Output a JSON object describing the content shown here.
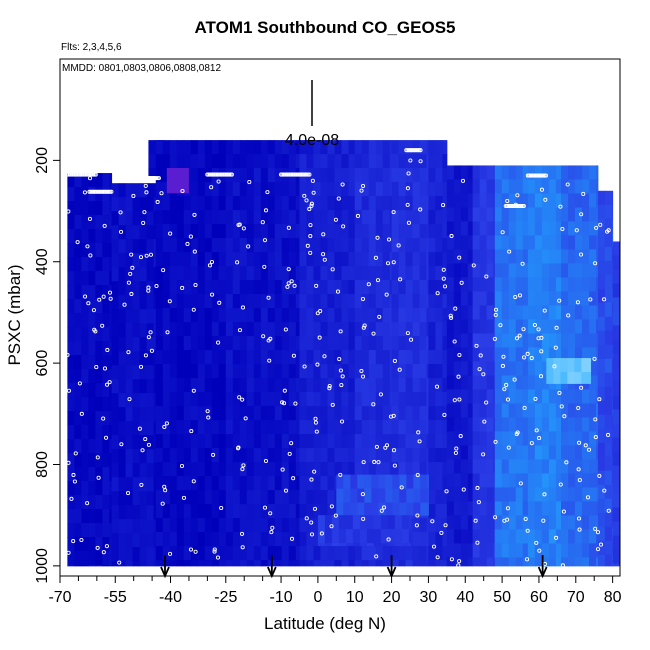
{
  "title": "ATOM1 Southbound CO_GEOS5",
  "flights_note": "Flts: 2,3,4,5,6",
  "dates_note": "MMDD: 0801,0803,0806,0808,0812",
  "scale_label": "4.0e-08",
  "chart_data": {
    "type": "heatmap",
    "xlabel": "Latitude (deg N)",
    "ylabel": "PSXC (mbar)",
    "xlim": [
      -70,
      82
    ],
    "ylim": [
      1020,
      0
    ],
    "x_ticks": [
      -70,
      -55,
      -40,
      -25,
      -10,
      0,
      10,
      20,
      30,
      40,
      50,
      60,
      70,
      80
    ],
    "x_tick_labels": [
      "-70",
      "-55",
      "-40",
      "-25",
      "-10",
      "0",
      "10",
      "20",
      "30",
      "40",
      "50",
      "60",
      "70",
      "80"
    ],
    "x_minor_ticks": [
      -65,
      -60,
      -50,
      -45,
      -35,
      -30,
      -20,
      -15,
      -5,
      5,
      15,
      25,
      35,
      45,
      55,
      65,
      75
    ],
    "y_ticks": [
      200,
      400,
      600,
      800,
      1000
    ],
    "y_tick_labels": [
      "200",
      "400",
      "600",
      "800",
      "1000"
    ],
    "colors": {
      "low": "#0000bb",
      "mid": "#2a3ce6",
      "high": "#22a8ff",
      "peak": "#7fd0ff",
      "purple": "#5a1ed0",
      "points": "#ffffff",
      "arrows": "#000000"
    },
    "regions": [
      {
        "lat": [
          -68,
          -56
        ],
        "p": [
          225,
          1000
        ],
        "v": 0.05
      },
      {
        "lat": [
          -56,
          -44
        ],
        "p": [
          245,
          1000
        ],
        "v": 0.08
      },
      {
        "lat": [
          -46,
          -42
        ],
        "p": [
          160,
          230
        ],
        "v": 0.05
      },
      {
        "lat": [
          -44,
          -25
        ],
        "p": [
          160,
          1000
        ],
        "v": 0.05
      },
      {
        "lat": [
          -25,
          -5
        ],
        "p": [
          160,
          1000
        ],
        "v": 0.1
      },
      {
        "lat": [
          -5,
          10
        ],
        "p": [
          160,
          1000
        ],
        "v": 0.2
      },
      {
        "lat": [
          10,
          20
        ],
        "p": [
          160,
          1000
        ],
        "v": 0.28
      },
      {
        "lat": [
          20,
          30
        ],
        "p": [
          160,
          1000
        ],
        "v": 0.3
      },
      {
        "lat": [
          30,
          35
        ],
        "p": [
          160,
          1000
        ],
        "v": 0.22
      },
      {
        "lat": [
          35,
          42
        ],
        "p": [
          210,
          1000
        ],
        "v": 0.15
      },
      {
        "lat": [
          42,
          48
        ],
        "p": [
          210,
          1000
        ],
        "v": 0.35
      },
      {
        "lat": [
          48,
          57
        ],
        "p": [
          210,
          1000
        ],
        "v": 0.6
      },
      {
        "lat": [
          57,
          66
        ],
        "p": [
          210,
          1000
        ],
        "v": 0.65
      },
      {
        "lat": [
          66,
          76
        ],
        "p": [
          210,
          1000
        ],
        "v": 0.55
      },
      {
        "lat": [
          76,
          80
        ],
        "p": [
          260,
          1000
        ],
        "v": 0.45
      },
      {
        "lat": [
          80,
          82
        ],
        "p": [
          360,
          1000
        ],
        "v": 0.4
      },
      {
        "lat": [
          -41,
          -35
        ],
        "p": [
          215,
          265
        ],
        "v": 0.9,
        "color": "purple"
      },
      {
        "lat": [
          62,
          74
        ],
        "p": [
          590,
          640
        ],
        "v": 0.95
      },
      {
        "lat": [
          5,
          30
        ],
        "p": [
          820,
          900
        ],
        "v": 0.45
      },
      {
        "lat": [
          0,
          25
        ],
        "p": [
          900,
          960
        ],
        "v": 0.35
      }
    ],
    "point_tracks": [
      {
        "lat": -66,
        "p": [
          230,
          1000
        ]
      },
      {
        "lat": -62,
        "p": [
          230,
          1000
        ]
      },
      {
        "lat": -58,
        "p": [
          260,
          1000
        ]
      },
      {
        "lat": -52,
        "p": [
          260,
          1000
        ]
      },
      {
        "lat": -47,
        "p": [
          230,
          1000
        ]
      },
      {
        "lat": -42,
        "p": [
          240,
          1000
        ]
      },
      {
        "lat": -35,
        "p": [
          240,
          1000
        ]
      },
      {
        "lat": -28,
        "p": [
          230,
          1000
        ]
      },
      {
        "lat": -20,
        "p": [
          240,
          1000
        ]
      },
      {
        "lat": -14,
        "p": [
          240,
          1000
        ]
      },
      {
        "lat": -8,
        "p": [
          230,
          1000
        ]
      },
      {
        "lat": -2,
        "p": [
          240,
          1000
        ]
      },
      {
        "lat": 0,
        "p": [
          240,
          1000
        ]
      },
      {
        "lat": 5,
        "p": [
          240,
          1000
        ]
      },
      {
        "lat": 12,
        "p": [
          240,
          1000
        ]
      },
      {
        "lat": 17,
        "p": [
          260,
          1000
        ]
      },
      {
        "lat": 21,
        "p": [
          260,
          1000
        ]
      },
      {
        "lat": 26,
        "p": [
          200,
          1000
        ]
      },
      {
        "lat": 33,
        "p": [
          240,
          1000
        ]
      },
      {
        "lat": 38,
        "p": [
          240,
          1000
        ]
      },
      {
        "lat": 44,
        "p": [
          250,
          1000
        ]
      },
      {
        "lat": 50,
        "p": [
          240,
          1000
        ]
      },
      {
        "lat": 55,
        "p": [
          240,
          1000
        ]
      },
      {
        "lat": 60,
        "p": [
          240,
          1000
        ]
      },
      {
        "lat": 66,
        "p": [
          240,
          1000
        ]
      },
      {
        "lat": 72,
        "p": [
          250,
          1000
        ]
      },
      {
        "lat": 77,
        "p": [
          260,
          1000
        ]
      }
    ],
    "flight_level_segments": [
      {
        "lat": [
          -68,
          -60
        ],
        "p": 228
      },
      {
        "lat": [
          -62,
          -56
        ],
        "p": 262
      },
      {
        "lat": [
          -47,
          -43
        ],
        "p": 235
      },
      {
        "lat": [
          -30,
          -23
        ],
        "p": 228
      },
      {
        "lat": [
          -10,
          -2
        ],
        "p": 228
      },
      {
        "lat": [
          24,
          28
        ],
        "p": 180
      },
      {
        "lat": [
          57,
          62
        ],
        "p": 230
      },
      {
        "lat": [
          51,
          56
        ],
        "p": 290
      }
    ],
    "arrows_lat": [
      -41.5,
      -12.5,
      20,
      61
    ]
  }
}
